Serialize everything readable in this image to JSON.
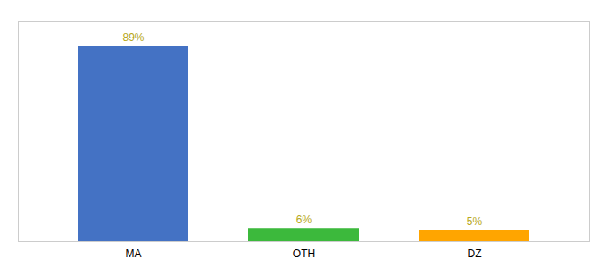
{
  "chart_data": {
    "type": "bar",
    "categories": [
      "MA",
      "OTH",
      "DZ"
    ],
    "values": [
      89,
      6,
      5
    ],
    "value_labels": [
      "89%",
      "6%",
      "5%"
    ],
    "colors": [
      "#4472C4",
      "#3CB93C",
      "#FFA500"
    ],
    "ylim": [
      0,
      100
    ],
    "data_labels": true,
    "tick_labels": "x",
    "grid": false
  }
}
